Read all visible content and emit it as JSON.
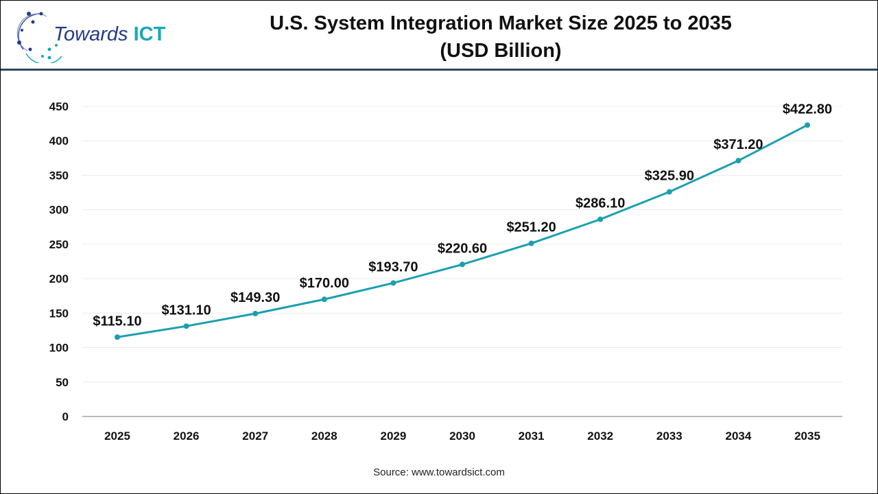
{
  "logo": {
    "text_main": "Towards",
    "text_accent": "ICT"
  },
  "title_line1": "U.S. System Integration Market Size 2025 to 2035",
  "title_line2": "(USD Billion)",
  "source": "Source: www.towardsict.com",
  "colors": {
    "line": "#1a9fb0",
    "header_rule": "#2f4560"
  },
  "chart_data": {
    "type": "line",
    "title": "U.S. System Integration Market Size 2025 to 2035 (USD Billion)",
    "categories": [
      "2025",
      "2026",
      "2027",
      "2028",
      "2029",
      "2030",
      "2031",
      "2032",
      "2033",
      "2034",
      "2035"
    ],
    "values": [
      115.1,
      131.1,
      149.3,
      170.0,
      193.7,
      220.6,
      251.2,
      286.1,
      325.9,
      371.2,
      422.8
    ],
    "data_labels": [
      "$115.10",
      "$131.10",
      "$149.30",
      "$170.00",
      "$193.70",
      "$220.60",
      "$251.20",
      "$286.10",
      "$325.90",
      "$371.20",
      "$422.80"
    ],
    "yticks": [
      "0",
      "50",
      "100",
      "150",
      "200",
      "250",
      "300",
      "350",
      "400",
      "450"
    ],
    "ylim": [
      0,
      450
    ],
    "grid": true,
    "legend": "none"
  }
}
